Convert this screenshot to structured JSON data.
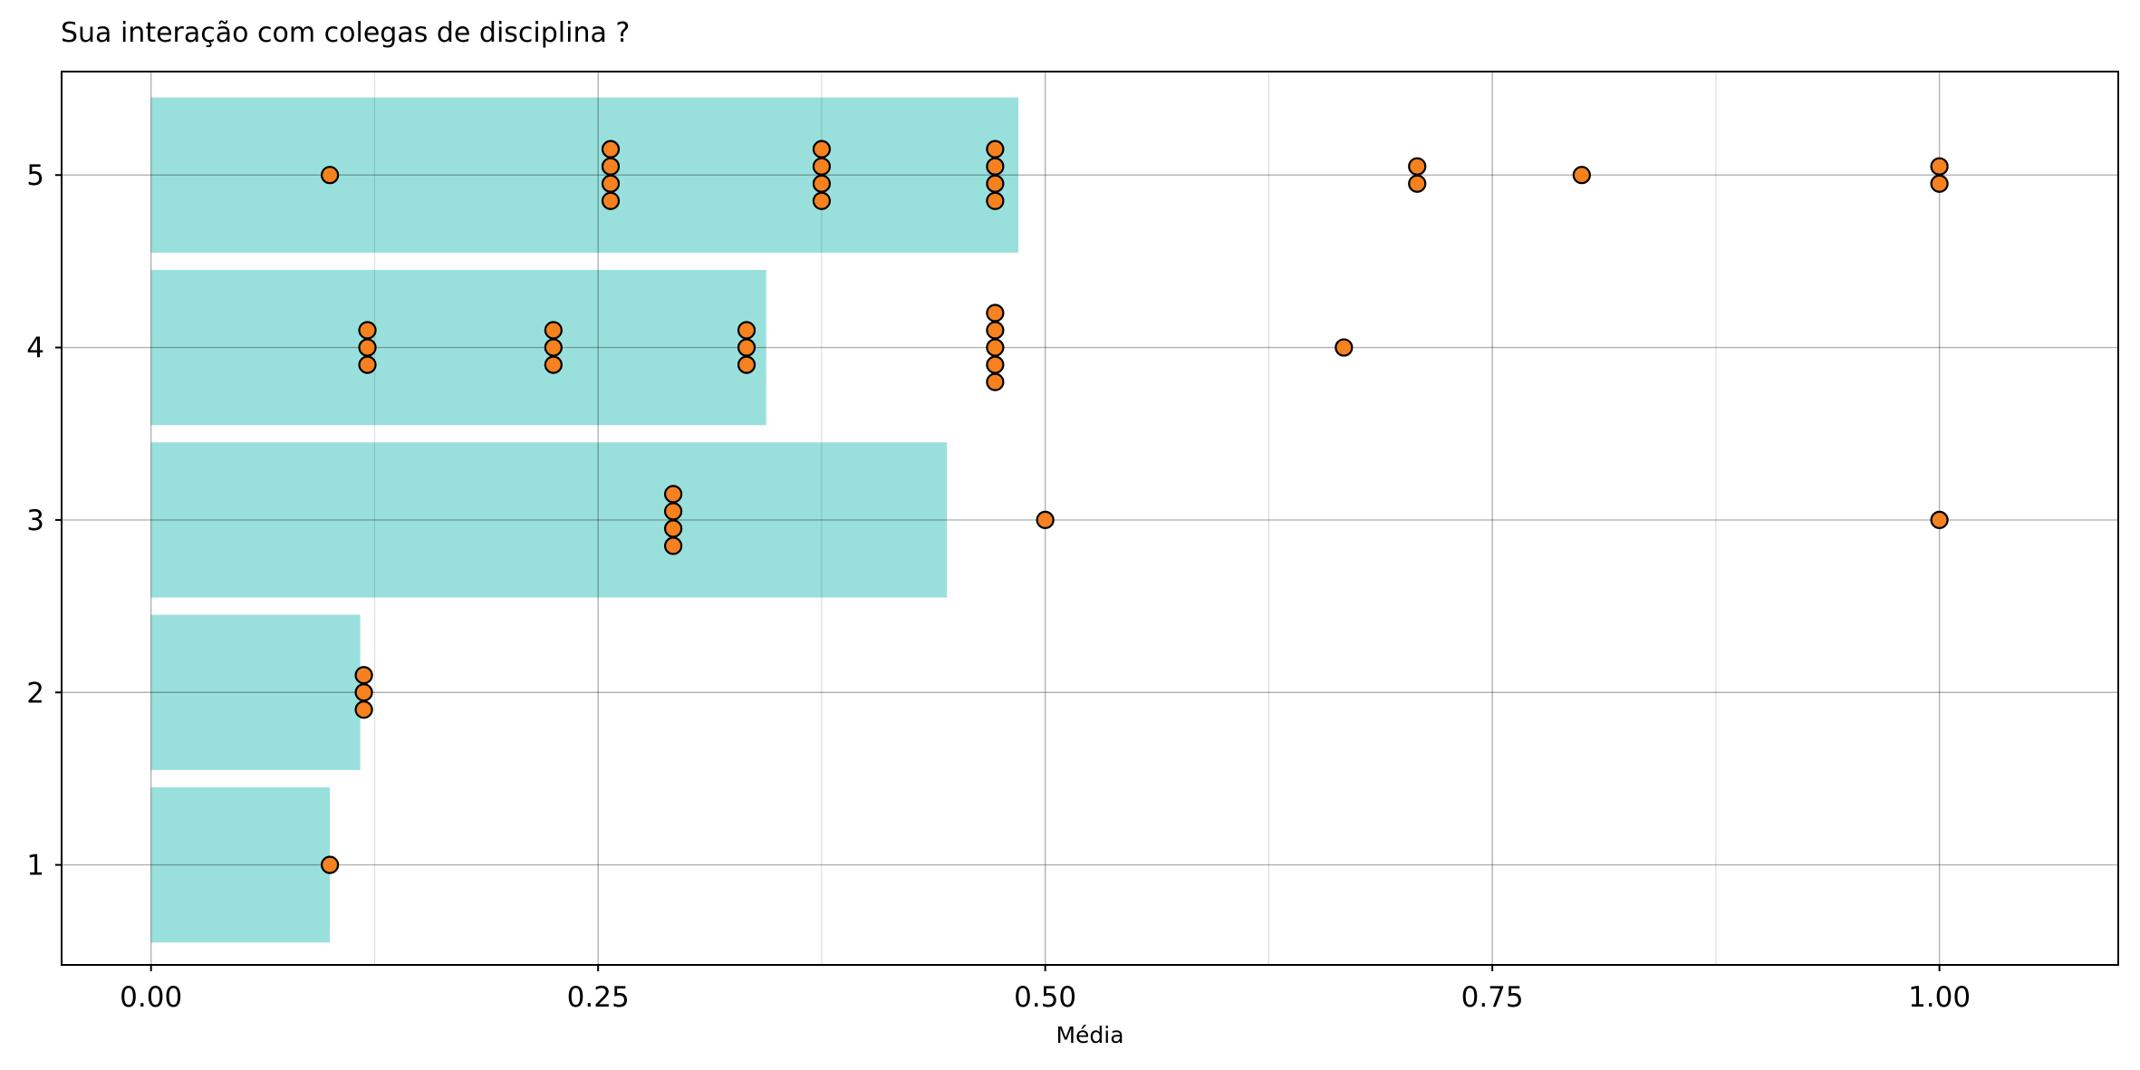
{
  "chart_data": {
    "type": "bar",
    "orientation": "horizontal",
    "title": "Sua interação com colegas de disciplina ?",
    "xlabel": "Média",
    "ylabel": "",
    "xlim": [
      -0.05,
      1.1
    ],
    "ylim": [
      0.42,
      5.6
    ],
    "x_ticks": [
      {
        "value": 0.0,
        "label": "0.00"
      },
      {
        "value": 0.25,
        "label": "0.25"
      },
      {
        "value": 0.5,
        "label": "0.50"
      },
      {
        "value": 0.75,
        "label": "0.75"
      },
      {
        "value": 1.0,
        "label": "1.00"
      }
    ],
    "y_ticks": [
      {
        "value": 1,
        "label": "1"
      },
      {
        "value": 2,
        "label": "2"
      },
      {
        "value": 3,
        "label": "3"
      },
      {
        "value": 4,
        "label": "4"
      },
      {
        "value": 5,
        "label": "5"
      }
    ],
    "minor_x_gridlines": [
      0.125,
      0.375,
      0.625,
      0.875
    ],
    "grid": true,
    "legend": "none",
    "colors": {
      "bar": "#99e0dc",
      "point_fill": "#f5811f",
      "point_edge": "#000000",
      "major_grid": "#b0b0b0",
      "minor_grid": "#dddddd",
      "axes": "#000000"
    },
    "bars": [
      {
        "category": 1,
        "value": 0.1
      },
      {
        "category": 2,
        "value": 0.117
      },
      {
        "category": 3,
        "value": 0.445
      },
      {
        "category": 4,
        "value": 0.344
      },
      {
        "category": 5,
        "value": 0.485
      }
    ],
    "points": [
      {
        "y": 5,
        "x": 0.1,
        "count": 1
      },
      {
        "y": 5,
        "x": 0.257,
        "count": 4
      },
      {
        "y": 5,
        "x": 0.375,
        "count": 4
      },
      {
        "y": 5,
        "x": 0.472,
        "count": 4
      },
      {
        "y": 5,
        "x": 0.708,
        "count": 2
      },
      {
        "y": 5,
        "x": 0.8,
        "count": 1
      },
      {
        "y": 5,
        "x": 1.0,
        "count": 2
      },
      {
        "y": 4,
        "x": 0.121,
        "count": 3
      },
      {
        "y": 4,
        "x": 0.225,
        "count": 3
      },
      {
        "y": 4,
        "x": 0.333,
        "count": 3
      },
      {
        "y": 4,
        "x": 0.472,
        "count": 5
      },
      {
        "y": 4,
        "x": 0.667,
        "count": 1
      },
      {
        "y": 3,
        "x": 0.292,
        "count": 4
      },
      {
        "y": 3,
        "x": 0.5,
        "count": 1
      },
      {
        "y": 3,
        "x": 1.0,
        "count": 1
      },
      {
        "y": 2,
        "x": 0.119,
        "count": 3
      },
      {
        "y": 1,
        "x": 0.1,
        "count": 1
      }
    ]
  }
}
